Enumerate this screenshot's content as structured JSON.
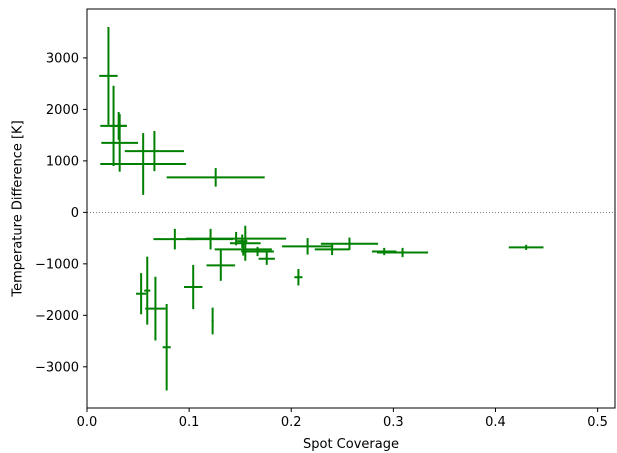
{
  "chart_data": {
    "type": "scatter",
    "title": "",
    "xlabel": "Spot Coverage",
    "ylabel": "Temperature Difference [K]",
    "xlim": [
      0.0,
      0.517
    ],
    "ylim": [
      -3800,
      3950
    ],
    "xticks": [
      0.0,
      0.1,
      0.2,
      0.3,
      0.4,
      0.5
    ],
    "xtick_labels": [
      "0.0",
      "0.1",
      "0.2",
      "0.3",
      "0.4",
      "0.5"
    ],
    "yticks": [
      -3000,
      -2000,
      -1000,
      0,
      1000,
      2000,
      3000
    ],
    "ytick_labels": [
      "−3000",
      "−2000",
      "−1000",
      "0",
      "1000",
      "2000",
      "3000"
    ],
    "reference_line": {
      "y": 0,
      "style": "dotted"
    },
    "grid": false,
    "color": "#008000",
    "points": [
      {
        "x": 0.021,
        "y": 2650,
        "xerr": 0.009,
        "yerr": 950
      },
      {
        "x": 0.026,
        "y": 1680,
        "xerr": 0.013,
        "yerr": 780
      },
      {
        "x": 0.031,
        "y": 1680,
        "xerr": 0.008,
        "yerr": 270
      },
      {
        "x": 0.032,
        "y": 1350,
        "xerr": 0.018,
        "yerr": 560
      },
      {
        "x": 0.055,
        "y": 940,
        "xerr": 0.042,
        "yerr": 600
      },
      {
        "x": 0.066,
        "y": 1190,
        "xerr": 0.029,
        "yerr": 390
      },
      {
        "x": 0.126,
        "y": 680,
        "xerr": 0.048,
        "yerr": 180
      },
      {
        "x": 0.086,
        "y": -520,
        "xerr": 0.021,
        "yerr": 200
      },
      {
        "x": 0.146,
        "y": -510,
        "xerr": 0.049,
        "yerr": 130
      },
      {
        "x": 0.121,
        "y": -520,
        "xerr": 0.022,
        "yerr": 200
      },
      {
        "x": 0.152,
        "y": -560,
        "xerr": 0.005,
        "yerr": 130
      },
      {
        "x": 0.155,
        "y": -600,
        "xerr": 0.015,
        "yerr": 340
      },
      {
        "x": 0.153,
        "y": -720,
        "xerr": 0.028,
        "yerr": 120
      },
      {
        "x": 0.167,
        "y": -760,
        "xerr": 0.016,
        "yerr": 90
      },
      {
        "x": 0.176,
        "y": -900,
        "xerr": 0.008,
        "yerr": 120
      },
      {
        "x": 0.216,
        "y": -660,
        "xerr": 0.025,
        "yerr": 160
      },
      {
        "x": 0.24,
        "y": -720,
        "xerr": 0.017,
        "yerr": 110
      },
      {
        "x": 0.257,
        "y": -610,
        "xerr": 0.028,
        "yerr": 120
      },
      {
        "x": 0.291,
        "y": -760,
        "xerr": 0.012,
        "yerr": 70
      },
      {
        "x": 0.309,
        "y": -780,
        "xerr": 0.025,
        "yerr": 90
      },
      {
        "x": 0.43,
        "y": -680,
        "xerr": 0.017,
        "yerr": 50
      },
      {
        "x": 0.131,
        "y": -1030,
        "xerr": 0.014,
        "yerr": 300
      },
      {
        "x": 0.207,
        "y": -1260,
        "xerr": 0.004,
        "yerr": 160
      },
      {
        "x": 0.104,
        "y": -1450,
        "xerr": 0.009,
        "yerr": 430
      },
      {
        "x": 0.053,
        "y": -1580,
        "xerr": 0.005,
        "yerr": 400
      },
      {
        "x": 0.059,
        "y": -1520,
        "xerr": 0.003,
        "yerr": 660
      },
      {
        "x": 0.067,
        "y": -1870,
        "xerr": 0.01,
        "yerr": 620
      },
      {
        "x": 0.123,
        "y": -2110,
        "xerr": 0.001,
        "yerr": 260
      },
      {
        "x": 0.078,
        "y": -2620,
        "xerr": 0.004,
        "yerr": 840
      }
    ]
  }
}
